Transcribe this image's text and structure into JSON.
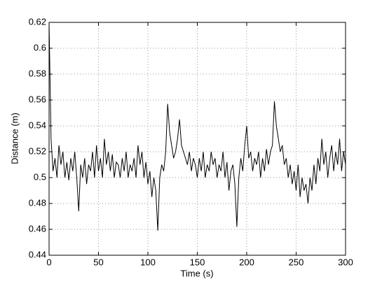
{
  "chart_data": {
    "type": "line",
    "xlabel": "Time (s)",
    "ylabel": "Distance (m)",
    "color": "#000000",
    "grid": true,
    "x": [
      0,
      2,
      4,
      6,
      8,
      10,
      12,
      14,
      16,
      18,
      20,
      22,
      24,
      26,
      28,
      30,
      32,
      34,
      36,
      38,
      40,
      42,
      44,
      46,
      48,
      50,
      52,
      54,
      56,
      58,
      60,
      62,
      64,
      66,
      68,
      70,
      72,
      74,
      76,
      78,
      80,
      82,
      84,
      86,
      88,
      90,
      92,
      94,
      96,
      98,
      100,
      102,
      104,
      106,
      108,
      110,
      112,
      114,
      116,
      118,
      120,
      122,
      124,
      126,
      128,
      130,
      132,
      134,
      136,
      138,
      140,
      142,
      144,
      146,
      148,
      150,
      152,
      154,
      156,
      158,
      160,
      162,
      164,
      166,
      168,
      170,
      172,
      174,
      176,
      178,
      180,
      182,
      184,
      186,
      188,
      190,
      192,
      194,
      196,
      198,
      200,
      202,
      204,
      206,
      208,
      210,
      212,
      214,
      216,
      218,
      220,
      222,
      224,
      226,
      228,
      230,
      232,
      234,
      236,
      238,
      240,
      242,
      244,
      246,
      248,
      250,
      252,
      254,
      256,
      258,
      260,
      262,
      264,
      266,
      268,
      270,
      272,
      274,
      276,
      278,
      280,
      282,
      284,
      286,
      288,
      290,
      292,
      294,
      296,
      298,
      300
    ],
    "values": [
      0.62,
      0.53,
      0.505,
      0.515,
      0.5,
      0.525,
      0.51,
      0.52,
      0.5,
      0.512,
      0.498,
      0.515,
      0.505,
      0.52,
      0.5,
      0.474,
      0.51,
      0.5,
      0.515,
      0.495,
      0.51,
      0.505,
      0.52,
      0.5,
      0.525,
      0.505,
      0.515,
      0.5,
      0.53,
      0.51,
      0.52,
      0.505,
      0.518,
      0.5,
      0.512,
      0.51,
      0.5,
      0.515,
      0.505,
      0.52,
      0.5,
      0.51,
      0.505,
      0.515,
      0.5,
      0.525,
      0.51,
      0.52,
      0.5,
      0.512,
      0.495,
      0.505,
      0.485,
      0.5,
      0.49,
      0.459,
      0.5,
      0.51,
      0.505,
      0.52,
      0.557,
      0.535,
      0.525,
      0.515,
      0.52,
      0.53,
      0.545,
      0.525,
      0.52,
      0.515,
      0.51,
      0.52,
      0.505,
      0.515,
      0.51,
      0.5,
      0.515,
      0.505,
      0.52,
      0.5,
      0.51,
      0.505,
      0.52,
      0.51,
      0.515,
      0.5,
      0.51,
      0.505,
      0.52,
      0.5,
      0.512,
      0.49,
      0.505,
      0.51,
      0.495,
      0.462,
      0.5,
      0.515,
      0.505,
      0.525,
      0.54,
      0.515,
      0.52,
      0.505,
      0.515,
      0.51,
      0.52,
      0.5,
      0.515,
      0.505,
      0.522,
      0.51,
      0.52,
      0.525,
      0.559,
      0.54,
      0.53,
      0.52,
      0.525,
      0.51,
      0.515,
      0.5,
      0.51,
      0.495,
      0.505,
      0.49,
      0.51,
      0.485,
      0.5,
      0.49,
      0.495,
      0.48,
      0.5,
      0.49,
      0.51,
      0.495,
      0.515,
      0.505,
      0.53,
      0.51,
      0.52,
      0.5,
      0.515,
      0.525,
      0.505,
      0.52,
      0.51,
      0.53,
      0.505,
      0.52,
      0.51
    ],
    "xlim": [
      0,
      300
    ],
    "xticks": [
      0,
      50,
      100,
      150,
      200,
      250,
      300
    ],
    "ylim": [
      0.44,
      0.62
    ],
    "yticks": [
      0.44,
      0.46,
      0.48,
      0.5,
      0.52,
      0.54,
      0.56,
      0.58,
      0.6,
      0.62
    ]
  }
}
